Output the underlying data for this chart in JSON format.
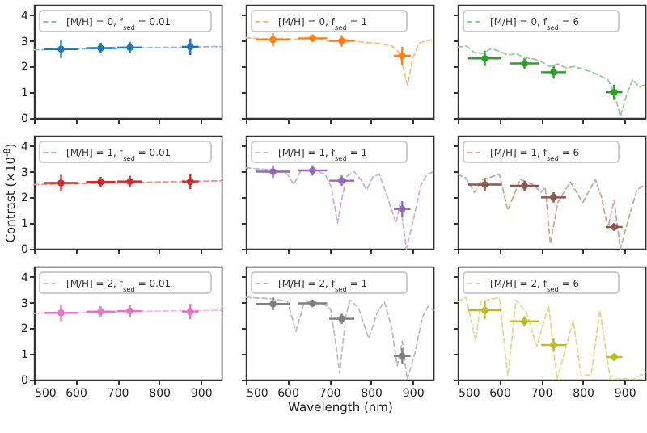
{
  "chart_data": [
    {
      "type": "line",
      "xlim": [
        500,
        950
      ],
      "ylim": [
        0,
        4.4
      ],
      "xticks": [
        500,
        600,
        700,
        800,
        900
      ],
      "yticks": [
        0,
        1,
        2,
        3,
        4
      ],
      "tick_labels": "y",
      "legend": "top left",
      "grid": false,
      "series": [
        {
          "name": "[M/H] = 0, f$_{sed}$ = 0.01",
          "line_style": "dashed",
          "color": "#8fbbd9",
          "x": [
            500,
            600,
            700,
            800,
            900,
            950
          ],
          "values": [
            2.65,
            2.68,
            2.71,
            2.74,
            2.77,
            2.78
          ]
        },
        {
          "type": "scatter",
          "marker": "circle",
          "color": "#1f77b4",
          "x": [
            565,
            660,
            730,
            875
          ],
          "values": [
            2.68,
            2.72,
            2.74,
            2.77
          ],
          "errors": [
            0.35,
            0.2,
            0.22,
            0.32
          ],
          "xerrors": [
            40,
            35,
            30,
            20
          ]
        }
      ]
    },
    {
      "type": "line",
      "xlim": [
        500,
        950
      ],
      "ylim": [
        0,
        4.4
      ],
      "xticks": [
        500,
        600,
        700,
        800,
        900
      ],
      "yticks": [
        0,
        1,
        2,
        3,
        4
      ],
      "tick_labels": false,
      "legend": "top left",
      "grid": false,
      "series": [
        {
          "name": "[M/H] = 0, f$_{sed}$ = 1",
          "line_style": "dashed",
          "color": "#ffbb86",
          "x": [
            500,
            540,
            580,
            620,
            660,
            700,
            740,
            780,
            820,
            850,
            865,
            875,
            888,
            900,
            915,
            930,
            950
          ],
          "values": [
            3.12,
            3.08,
            3.1,
            3.06,
            3.1,
            3.0,
            3.05,
            2.95,
            2.9,
            2.8,
            2.6,
            2.1,
            1.27,
            2.3,
            2.9,
            3.0,
            3.05
          ]
        },
        {
          "type": "scatter",
          "marker": "circle",
          "color": "#ff7f0e",
          "x": [
            565,
            660,
            730,
            875
          ],
          "values": [
            3.05,
            3.1,
            3.0,
            2.42
          ],
          "errors": [
            0.25,
            0.15,
            0.22,
            0.35
          ],
          "xerrors": [
            40,
            35,
            30,
            20
          ]
        }
      ]
    },
    {
      "type": "line",
      "xlim": [
        500,
        950
      ],
      "ylim": [
        0,
        4.4
      ],
      "xticks": [
        500,
        600,
        700,
        800,
        900
      ],
      "yticks": [
        0,
        1,
        2,
        3,
        4
      ],
      "tick_labels": false,
      "legend": "top left",
      "grid": false,
      "series": [
        {
          "name": "[M/H] = 0, f$_{sed}$ = 6",
          "line_style": "dashed",
          "color": "#95cf95",
          "x": [
            500,
            520,
            540,
            560,
            580,
            600,
            620,
            640,
            660,
            680,
            700,
            720,
            740,
            760,
            780,
            800,
            820,
            840,
            860,
            875,
            890,
            905,
            920,
            935,
            950
          ],
          "values": [
            2.75,
            2.8,
            2.55,
            2.5,
            2.7,
            2.6,
            2.45,
            2.5,
            2.35,
            2.3,
            2.2,
            2.0,
            2.1,
            1.95,
            2.0,
            1.9,
            1.8,
            1.65,
            1.5,
            1.0,
            0.06,
            0.9,
            1.5,
            1.2,
            1.3
          ]
        },
        {
          "type": "scatter",
          "marker": "circle",
          "color": "#2ca02c",
          "x": [
            565,
            660,
            730,
            875
          ],
          "values": [
            2.32,
            2.12,
            1.78,
            1.0
          ],
          "errors": [
            0.3,
            0.2,
            0.25,
            0.3
          ],
          "xerrors": [
            40,
            35,
            30,
            20
          ]
        }
      ]
    },
    {
      "type": "line",
      "ylabel": "Contrast (×10$^{-8}$)",
      "xlim": [
        500,
        950
      ],
      "ylim": [
        0,
        4.4
      ],
      "xticks": [
        500,
        600,
        700,
        800,
        900
      ],
      "yticks": [
        0,
        1,
        2,
        3,
        4
      ],
      "tick_labels": "y",
      "legend": "top left",
      "grid": false,
      "series": [
        {
          "name": "[M/H] = 1, f$_{sed}$ = 0.01",
          "line_style": "dashed",
          "color": "#ea9393",
          "x": [
            500,
            600,
            700,
            800,
            900,
            950
          ],
          "values": [
            2.5,
            2.53,
            2.56,
            2.6,
            2.63,
            2.65
          ]
        },
        {
          "type": "scatter",
          "marker": "circle",
          "color": "#d62728",
          "x": [
            565,
            660,
            730,
            875
          ],
          "values": [
            2.56,
            2.6,
            2.62,
            2.62
          ],
          "errors": [
            0.32,
            0.2,
            0.22,
            0.3
          ],
          "xerrors": [
            40,
            35,
            30,
            20
          ]
        }
      ]
    },
    {
      "type": "line",
      "xlim": [
        500,
        950
      ],
      "ylim": [
        0,
        4.4
      ],
      "xticks": [
        500,
        600,
        700,
        800,
        900
      ],
      "yticks": [
        0,
        1,
        2,
        3,
        4
      ],
      "tick_labels": false,
      "legend": "top left",
      "grid": false,
      "series": [
        {
          "name": "[M/H] = 1, f$_{sed}$ = 1",
          "line_style": "dashed",
          "color": "#c9b3de",
          "x": [
            500,
            540,
            580,
            600,
            615,
            630,
            660,
            690,
            705,
            720,
            740,
            760,
            775,
            790,
            805,
            820,
            840,
            860,
            870,
            885,
            900,
            920,
            935,
            950
          ],
          "values": [
            3.15,
            3.1,
            3.05,
            2.9,
            2.5,
            3.0,
            3.1,
            2.9,
            2.4,
            1.0,
            2.8,
            3.0,
            2.7,
            2.3,
            2.8,
            2.9,
            2.0,
            1.0,
            1.8,
            0.0,
            1.0,
            2.5,
            2.9,
            3.0
          ]
        },
        {
          "type": "scatter",
          "marker": "circle",
          "color": "#9467bd",
          "x": [
            565,
            660,
            730,
            875
          ],
          "values": [
            3.0,
            3.05,
            2.65,
            1.55
          ],
          "errors": [
            0.25,
            0.2,
            0.2,
            0.3
          ],
          "xerrors": [
            40,
            35,
            30,
            20
          ]
        }
      ]
    },
    {
      "type": "line",
      "xlim": [
        500,
        950
      ],
      "ylim": [
        0,
        4.4
      ],
      "xticks": [
        500,
        600,
        700,
        800,
        900
      ],
      "yticks": [
        0,
        1,
        2,
        3,
        4
      ],
      "tick_labels": false,
      "legend": "top left",
      "grid": false,
      "series": [
        {
          "name": "[M/H] = 1, f$_{sed}$ = 6",
          "line_style": "dashed",
          "color": "#c5aaa5",
          "x": [
            500,
            520,
            540,
            560,
            600,
            620,
            650,
            680,
            700,
            710,
            722,
            740,
            770,
            800,
            830,
            845,
            860,
            875,
            890,
            910,
            930,
            950
          ],
          "values": [
            2.9,
            2.75,
            2.2,
            2.7,
            2.9,
            1.5,
            2.7,
            2.5,
            2.2,
            2.4,
            0.2,
            1.8,
            2.6,
            1.8,
            2.7,
            2.0,
            0.8,
            1.9,
            0.0,
            1.2,
            2.3,
            2.5
          ]
        },
        {
          "type": "scatter",
          "marker": "circle",
          "color": "#8c564b",
          "x": [
            565,
            660,
            730,
            875
          ],
          "values": [
            2.5,
            2.45,
            2.0,
            0.85
          ],
          "errors": [
            0.25,
            0.2,
            0.2,
            0.15
          ],
          "xerrors": [
            40,
            35,
            30,
            20
          ]
        }
      ]
    },
    {
      "type": "line",
      "xlim": [
        500,
        950
      ],
      "ylim": [
        0,
        4.4
      ],
      "xticks": [
        500,
        600,
        700,
        800,
        900
      ],
      "yticks": [
        0,
        1,
        2,
        3,
        4
      ],
      "legend": "top left",
      "grid": false,
      "series": [
        {
          "name": "[M/H] = 2, f$_{sed}$ = 0.01",
          "line_style": "dashed",
          "color": "#f1bbe0",
          "x": [
            500,
            600,
            700,
            800,
            900,
            950
          ],
          "values": [
            2.58,
            2.61,
            2.64,
            2.67,
            2.69,
            2.7
          ]
        },
        {
          "type": "scatter",
          "marker": "circle",
          "color": "#e377c2",
          "x": [
            565,
            660,
            730,
            875
          ],
          "values": [
            2.6,
            2.65,
            2.67,
            2.65
          ],
          "errors": [
            0.32,
            0.2,
            0.22,
            0.3
          ],
          "xerrors": [
            40,
            35,
            30,
            20
          ]
        }
      ]
    },
    {
      "type": "line",
      "xlabel": "Wavelength (nm)",
      "xlim": [
        500,
        950
      ],
      "ylim": [
        0,
        4.4
      ],
      "xticks": [
        500,
        600,
        700,
        800,
        900
      ],
      "yticks": [
        0,
        1,
        2,
        3,
        4
      ],
      "tick_labels": "x",
      "legend": "top left",
      "grid": false,
      "series": [
        {
          "name": "[M/H] = 2, f$_{sed}$ = 1",
          "line_style": "dashed",
          "color": "#bfbfbf",
          "x": [
            500,
            560,
            600,
            620,
            640,
            660,
            690,
            703,
            715,
            725,
            740,
            750,
            770,
            795,
            815,
            832,
            850,
            863,
            875,
            887,
            905,
            924,
            937,
            950
          ],
          "values": [
            3.2,
            3.15,
            3.05,
            1.88,
            3.0,
            3.05,
            2.9,
            2.75,
            1.5,
            0.25,
            2.5,
            3.1,
            2.8,
            1.6,
            2.6,
            3.05,
            2.0,
            0.54,
            1.5,
            0.0,
            1.0,
            2.46,
            2.85,
            2.7
          ]
        },
        {
          "type": "scatter",
          "marker": "circle",
          "color": "#7f7f7f",
          "x": [
            565,
            660,
            730,
            875
          ],
          "values": [
            2.95,
            2.97,
            2.37,
            0.92
          ],
          "errors": [
            0.25,
            0.15,
            0.2,
            0.3
          ],
          "xerrors": [
            40,
            35,
            30,
            20
          ]
        }
      ]
    },
    {
      "type": "line",
      "xlim": [
        500,
        950
      ],
      "ylim": [
        0,
        4.4
      ],
      "xticks": [
        500,
        600,
        700,
        800,
        900
      ],
      "yticks": [
        0,
        1,
        2,
        3,
        4
      ],
      "tick_labels": "x",
      "legend": "top left",
      "grid": false,
      "series": [
        {
          "name": "[M/H] = 2, f$_{sed}$ = 6",
          "line_style": "dashed",
          "color": "#dddd90",
          "x": [
            500,
            520,
            543,
            555,
            600,
            620,
            640,
            665,
            690,
            718,
            738,
            777,
            796,
            820,
            841,
            866,
            900,
            920,
            935,
            950
          ],
          "values": [
            3.04,
            3.2,
            1.52,
            3.04,
            3.2,
            0.15,
            3.1,
            2.6,
            1.3,
            2.9,
            0.0,
            2.3,
            0.15,
            0.2,
            2.7,
            0.0,
            0.05,
            0.0,
            0.15,
            0.3
          ]
        },
        {
          "type": "scatter",
          "marker": "circle",
          "color": "#bcbd22",
          "x": [
            565,
            660,
            730,
            875
          ],
          "values": [
            2.7,
            2.27,
            1.35,
            0.88
          ],
          "errors": [
            0.35,
            0.2,
            0.25,
            0.15
          ],
          "xerrors": [
            40,
            35,
            30,
            20
          ]
        }
      ]
    }
  ]
}
